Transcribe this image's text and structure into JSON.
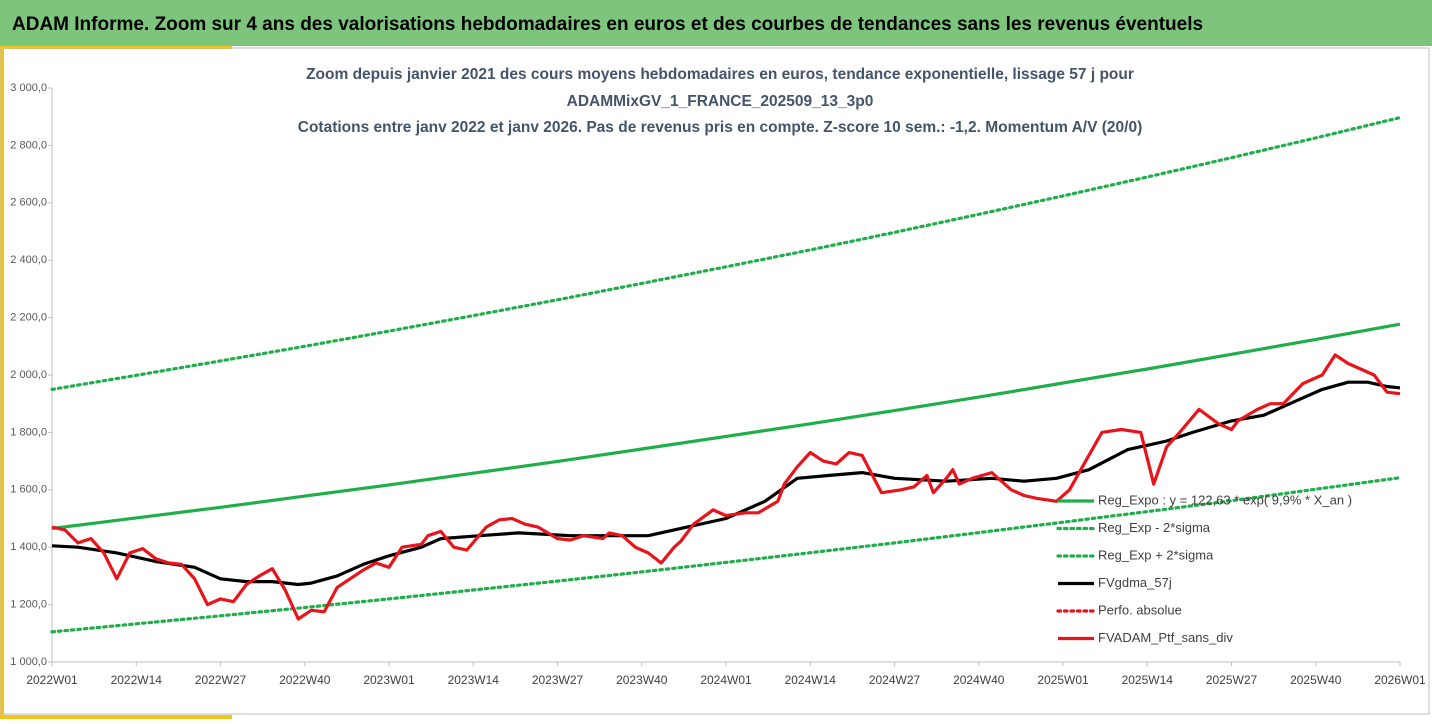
{
  "header": {
    "title": "ADAM Informe. Zoom sur 4 ans des valorisations hebdomadaires en euros et des courbes de tendances sans les revenus éventuels"
  },
  "chart_data": {
    "type": "line",
    "title": [
      "Zoom depuis janvier 2021 des cours moyens hebdomadaires  en euros, tendance exponentielle, lissage 57 j pour",
      "ADAMMixGV_1_FRANCE_202509_13_3p0",
      "Cotations  entre janv 2022 et janv 2026. Pas de revenus pris en compte. Z-score 10 sem.: -1,2. Momentum A/V (20/0)"
    ],
    "xlim": [
      0,
      208
    ],
    "xticks": [
      {
        "value": 0,
        "label": "2022W01"
      },
      {
        "value": 13,
        "label": "2022W14"
      },
      {
        "value": 26,
        "label": "2022W27"
      },
      {
        "value": 39,
        "label": "2022W40"
      },
      {
        "value": 52,
        "label": "2023W01"
      },
      {
        "value": 65,
        "label": "2023W14"
      },
      {
        "value": 78,
        "label": "2023W27"
      },
      {
        "value": 91,
        "label": "2023W40"
      },
      {
        "value": 104,
        "label": "2024W01"
      },
      {
        "value": 117,
        "label": "2024W14"
      },
      {
        "value": 130,
        "label": "2024W27"
      },
      {
        "value": 143,
        "label": "2024W40"
      },
      {
        "value": 156,
        "label": "2025W01"
      },
      {
        "value": 169,
        "label": "2025W14"
      },
      {
        "value": 182,
        "label": "2025W27"
      },
      {
        "value": 195,
        "label": "2025W40"
      },
      {
        "value": 208,
        "label": "2026W01"
      }
    ],
    "ylim": [
      1000,
      3000
    ],
    "yticks": [
      {
        "value": 1000,
        "label": "1 000,0"
      },
      {
        "value": 1200,
        "label": "1 200,0"
      },
      {
        "value": 1400,
        "label": "1 400,0"
      },
      {
        "value": 1600,
        "label": "1 600,0"
      },
      {
        "value": 1800,
        "label": "1 800,0"
      },
      {
        "value": 2000,
        "label": "2 000,0"
      },
      {
        "value": 2200,
        "label": "2 200,0"
      },
      {
        "value": 2400,
        "label": "2 400,0"
      },
      {
        "value": 2600,
        "label": "2 600,0"
      },
      {
        "value": 2800,
        "label": "2 800,0"
      },
      {
        "value": 3000,
        "label": "3 000,0"
      }
    ],
    "grid": false,
    "legend": "bottom-right",
    "series": [
      {
        "name": "Reg_Expo : y = 122,63 * exp( 9,9% *  X_an )",
        "color": "#1fae4a",
        "style": "solid",
        "x": [
          0,
          13,
          26,
          39,
          52,
          65,
          78,
          91,
          104,
          117,
          130,
          143,
          156,
          169,
          182,
          195,
          208
        ],
        "values": [
          1465,
          1502,
          1539,
          1578,
          1617,
          1658,
          1699,
          1742,
          1786,
          1830,
          1876,
          1923,
          1972,
          2021,
          2072,
          2124,
          2177
        ]
      },
      {
        "name": "Reg_Exp - 2*sigma",
        "color": "#1fae4a",
        "style": "dotted",
        "x": [
          0,
          13,
          26,
          39,
          52,
          65,
          78,
          91,
          104,
          117,
          130,
          143,
          156,
          169,
          182,
          195,
          208
        ],
        "values": [
          1105,
          1133,
          1161,
          1190,
          1220,
          1251,
          1282,
          1314,
          1347,
          1381,
          1415,
          1451,
          1487,
          1524,
          1562,
          1602,
          1642
        ]
      },
      {
        "name": "Reg_Exp + 2*sigma",
        "color": "#1fae4a",
        "style": "dotted",
        "x": [
          0,
          13,
          26,
          39,
          52,
          65,
          78,
          91,
          104,
          117,
          130,
          143,
          156,
          169,
          182,
          195,
          208
        ],
        "values": [
          1950,
          1999,
          2049,
          2100,
          2153,
          2207,
          2262,
          2319,
          2377,
          2436,
          2497,
          2560,
          2624,
          2690,
          2757,
          2826,
          2897
        ]
      },
      {
        "name": "FVgdma_57j",
        "color": "#000000",
        "style": "solid",
        "x": [
          0,
          4,
          10,
          16,
          22,
          26,
          30,
          34,
          38,
          40,
          44,
          48,
          52,
          57,
          60,
          66,
          72,
          80,
          88,
          92,
          98,
          104,
          110,
          115,
          120,
          125,
          130,
          138,
          145,
          150,
          155,
          160,
          166,
          172,
          176,
          182,
          187,
          192,
          196,
          200,
          203,
          206,
          208
        ],
        "values": [
          1405,
          1400,
          1380,
          1350,
          1330,
          1290,
          1280,
          1280,
          1270,
          1275,
          1300,
          1340,
          1370,
          1400,
          1430,
          1440,
          1450,
          1440,
          1440,
          1440,
          1470,
          1500,
          1560,
          1640,
          1650,
          1660,
          1640,
          1630,
          1640,
          1630,
          1640,
          1670,
          1740,
          1770,
          1800,
          1840,
          1860,
          1910,
          1950,
          1975,
          1975,
          1960,
          1955
        ]
      },
      {
        "name": "Perfo. absolue",
        "color": "#e8141b",
        "style": "dotted"
      },
      {
        "name": "FVADAM_Ptf_sans_div",
        "color": "#e8141b",
        "style": "solid",
        "x": [
          0,
          2,
          4,
          6,
          8,
          10,
          12,
          14,
          16,
          18,
          20,
          22,
          24,
          26,
          28,
          30,
          32,
          34,
          36,
          38,
          40,
          42,
          44,
          46,
          48,
          50,
          52,
          54,
          57,
          58,
          60,
          62,
          64,
          67,
          69,
          71,
          73,
          75,
          78,
          80,
          82,
          85,
          86,
          88,
          90,
          92,
          94,
          96,
          97,
          99,
          102,
          104,
          107,
          109,
          112,
          113,
          115,
          117,
          119,
          121,
          123,
          125,
          128,
          131,
          133,
          135,
          136,
          138,
          139,
          140,
          142,
          145,
          148,
          150,
          152,
          155,
          157,
          159,
          162,
          165,
          168,
          170,
          172,
          174,
          177,
          180,
          182,
          183,
          186,
          188,
          190,
          193,
          196,
          198,
          200,
          203,
          204,
          206,
          208
        ],
        "values": [
          1470,
          1460,
          1415,
          1430,
          1380,
          1290,
          1380,
          1395,
          1360,
          1345,
          1340,
          1290,
          1200,
          1220,
          1210,
          1270,
          1300,
          1325,
          1250,
          1150,
          1180,
          1175,
          1260,
          1290,
          1320,
          1345,
          1330,
          1400,
          1410,
          1440,
          1455,
          1400,
          1390,
          1470,
          1495,
          1500,
          1480,
          1470,
          1430,
          1425,
          1440,
          1430,
          1450,
          1440,
          1400,
          1380,
          1345,
          1400,
          1420,
          1480,
          1530,
          1510,
          1520,
          1520,
          1560,
          1620,
          1680,
          1730,
          1700,
          1690,
          1730,
          1720,
          1590,
          1600,
          1610,
          1650,
          1590,
          1640,
          1670,
          1620,
          1640,
          1660,
          1600,
          1580,
          1570,
          1560,
          1600,
          1680,
          1800,
          1810,
          1800,
          1620,
          1750,
          1800,
          1880,
          1830,
          1810,
          1840,
          1880,
          1900,
          1900,
          1970,
          2000,
          2070,
          2040,
          2010,
          2000,
          1940,
          1935
        ]
      }
    ]
  }
}
